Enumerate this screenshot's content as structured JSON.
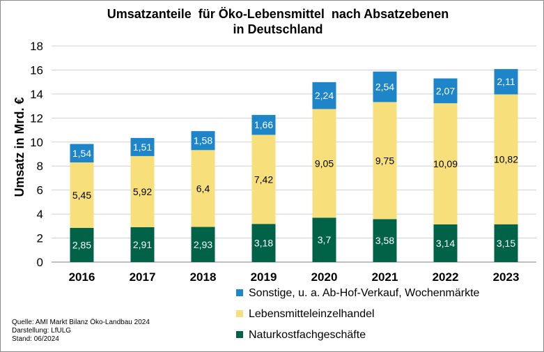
{
  "chart_data": {
    "type": "bar",
    "stacked": true,
    "title_lines": [
      "Umsatzanteile  für Öko-Lebensmittel  nach Absatzebenen",
      "in Deutschland"
    ],
    "ylabel": "Umsatz in Mrd. €",
    "xlabel": "",
    "ylim": [
      0,
      18
    ],
    "yticks": [
      0,
      2,
      4,
      6,
      8,
      10,
      12,
      14,
      16,
      18
    ],
    "grid": true,
    "legend_position": "bottom-right",
    "categories": [
      "2016",
      "2017",
      "2018",
      "2019",
      "2020",
      "2021",
      "2022",
      "2023"
    ],
    "series": [
      {
        "name": "Naturkostfachgeschäfte",
        "color": "#006347",
        "label_color": "#ffffff",
        "values": [
          2.85,
          2.91,
          2.93,
          3.18,
          3.7,
          3.58,
          3.14,
          3.15
        ],
        "labels": [
          "2,85",
          "2,91",
          "2,93",
          "3,18",
          "3,7",
          "3,58",
          "3,14",
          "3,15"
        ]
      },
      {
        "name": "Lebensmitteleinzelhandel",
        "color": "#f7df7b",
        "label_color": "#000000",
        "values": [
          5.45,
          5.92,
          6.4,
          7.42,
          9.05,
          9.75,
          10.09,
          10.82
        ],
        "labels": [
          "5,45",
          "5,92",
          "6,4",
          "7,42",
          "9,05",
          "9,75",
          "10,09",
          "10,82"
        ]
      },
      {
        "name": "Sonstige, u. a. Ab-Hof-Verkauf, Wochenmärkte",
        "color": "#1e86c8",
        "label_color": "#ffffff",
        "values": [
          1.54,
          1.51,
          1.58,
          1.66,
          2.24,
          2.54,
          2.07,
          2.11
        ],
        "labels": [
          "1,54",
          "1,51",
          "1,58",
          "1,66",
          "2,24",
          "2,54",
          "2,07",
          "2,11"
        ]
      }
    ],
    "legend_order": [
      2,
      1,
      0
    ]
  },
  "source": {
    "line1": "Quelle:  AMI  Markt Bilanz Öko-Landbau 2024",
    "line2": "Darstellung: LfULG",
    "line3": "Stand: 06/2024"
  }
}
